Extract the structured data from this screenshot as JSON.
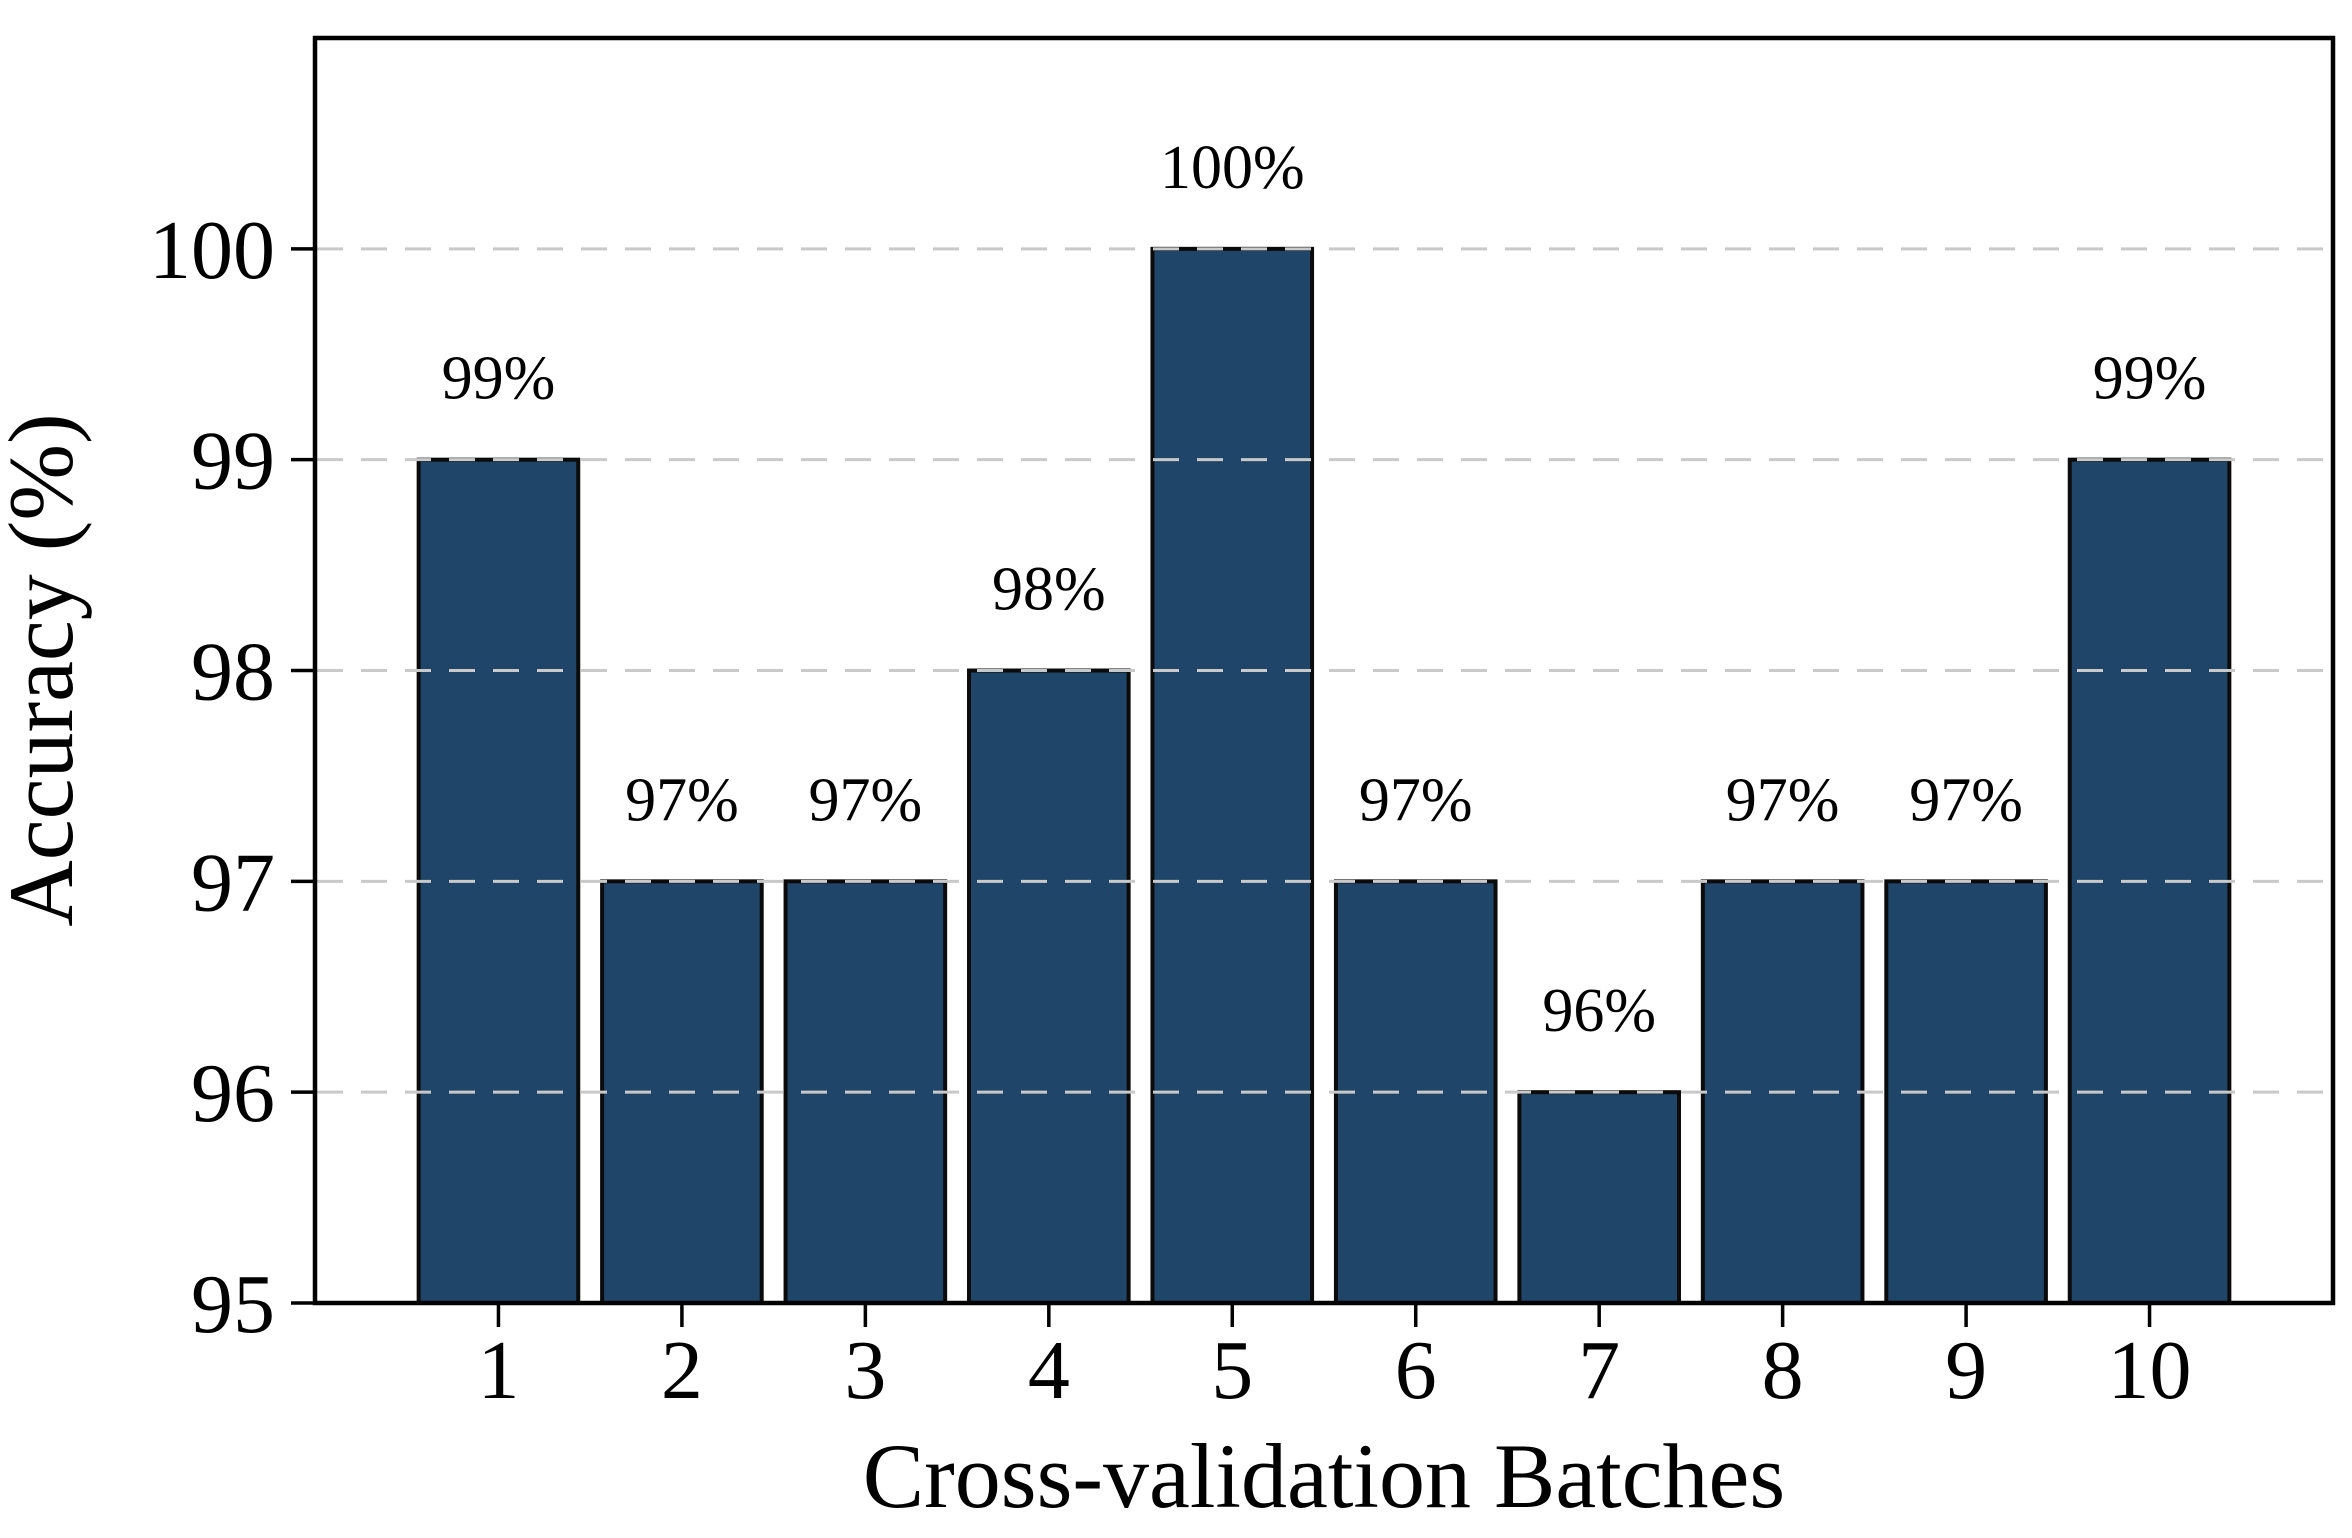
{
  "chart_data": {
    "type": "bar",
    "title": "",
    "xlabel": "Cross-validation Batches",
    "ylabel": "Accuracy (%)",
    "categories": [
      "1",
      "2",
      "3",
      "4",
      "5",
      "6",
      "7",
      "8",
      "9",
      "10"
    ],
    "values": [
      99,
      97,
      97,
      98,
      100,
      97,
      96,
      97,
      97,
      99
    ],
    "bar_labels": [
      "99%",
      "97%",
      "97%",
      "98%",
      "100%",
      "97%",
      "96%",
      "97%",
      "97%",
      "99%"
    ],
    "ylim": [
      95,
      101
    ],
    "yticks": [
      95,
      96,
      97,
      98,
      99,
      100
    ],
    "xticks": [
      1,
      2,
      3,
      4,
      5,
      6,
      7,
      8,
      9,
      10
    ],
    "grid": "horizontal dashed gridlines at 96-100, drawn above bars",
    "legend_position": "none",
    "bar_width_fraction": 0.87,
    "colors": {
      "bar_fill": "#1F4569",
      "bar_edge": "#0B0B0B",
      "grid": "#C9C9C9",
      "spine": "#000000",
      "text": "#000000",
      "background": "#FFFFFF"
    }
  }
}
